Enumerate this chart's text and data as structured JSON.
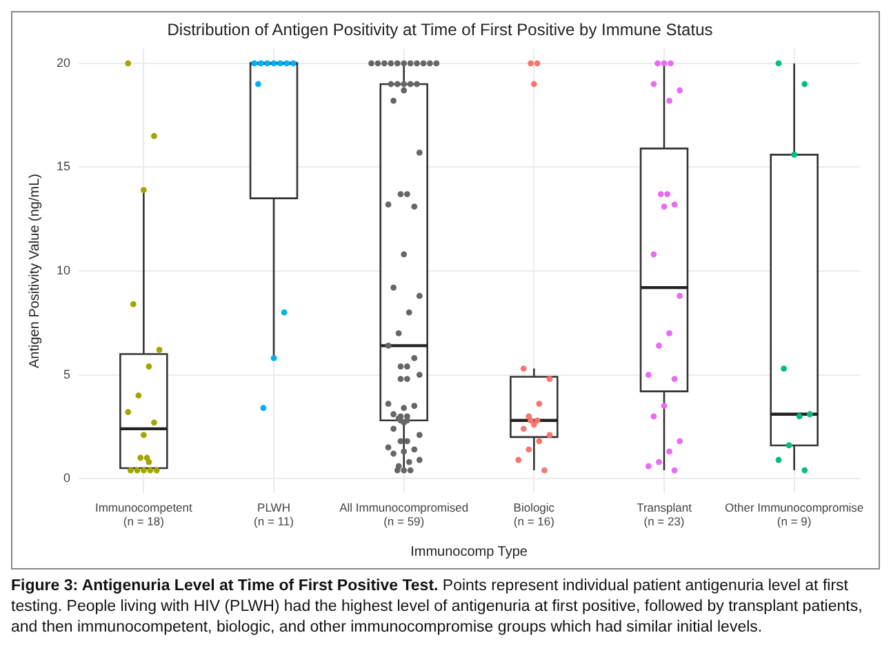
{
  "chart_data": {
    "type": "box",
    "title": "Distribution of Antigen Positivity at Time of First Positive by Immune Status",
    "xlabel": "Immunocomp Type",
    "ylabel": "Antigen Positivity Value (ng/mL)",
    "categories": [
      "Immunocompetent\n(n = 18)",
      "PLWH\n(n = 11)",
      "All Immunocompromised\n(n = 59)",
      "Biologic\n(n = 16)",
      "Transplant\n(n = 23)",
      "Other Immunocompromise\n(n = 9)"
    ],
    "boxes": [
      {
        "low": 0.4,
        "q1": 0.5,
        "median": 2.4,
        "q3": 6.0,
        "high": 13.9
      },
      {
        "low": 5.8,
        "q1": 13.5,
        "median": 20,
        "q3": 20,
        "high": 20
      },
      {
        "low": 0.4,
        "q1": 2.8,
        "median": 6.4,
        "q3": 19,
        "high": 20
      },
      {
        "low": 0.4,
        "q1": 2.0,
        "median": 2.8,
        "q3": 4.9,
        "high": 5.3
      },
      {
        "low": 0.4,
        "q1": 4.2,
        "median": 9.2,
        "q3": 15.9,
        "high": 20
      },
      {
        "low": 0.4,
        "q1": 1.6,
        "median": 3.1,
        "q3": 15.6,
        "high": 20
      }
    ],
    "series": [
      {
        "type": "scatter",
        "color": "#a3a500",
        "x": [
          "Immunocompetent\n(n = 18)",
          "Immunocompetent\n(n = 18)",
          "Immunocompetent\n(n = 18)",
          "Immunocompetent\n(n = 18)",
          "Immunocompetent\n(n = 18)",
          "Immunocompetent\n(n = 18)",
          "Immunocompetent\n(n = 18)",
          "Immunocompetent\n(n = 18)",
          "Immunocompetent\n(n = 18)",
          "Immunocompetent\n(n = 18)",
          "Immunocompetent\n(n = 18)",
          "Immunocompetent\n(n = 18)",
          "Immunocompetent\n(n = 18)",
          "Immunocompetent\n(n = 18)",
          "Immunocompetent\n(n = 18)",
          "Immunocompetent\n(n = 18)",
          "Immunocompetent\n(n = 18)",
          "Immunocompetent\n(n = 18)"
        ],
        "values": [
          20,
          16.5,
          13.9,
          8.4,
          6.2,
          5.4,
          4.0,
          3.2,
          2.7,
          2.1,
          1.0,
          1.0,
          0.8,
          0.4,
          0.4,
          0.4,
          0.4,
          0.4
        ]
      },
      {
        "type": "scatter",
        "color": "#00b0f6",
        "x": [
          "PLWH\n(n = 11)",
          "PLWH\n(n = 11)",
          "PLWH\n(n = 11)",
          "PLWH\n(n = 11)",
          "PLWH\n(n = 11)",
          "PLWH\n(n = 11)",
          "PLWH\n(n = 11)",
          "PLWH\n(n = 11)",
          "PLWH\n(n = 11)",
          "PLWH\n(n = 11)",
          "PLWH\n(n = 11)"
        ],
        "values": [
          20,
          20,
          20,
          20,
          20,
          20,
          20,
          19,
          8.0,
          5.8,
          3.4
        ]
      },
      {
        "type": "scatter",
        "color": "#666666",
        "x": [
          "All Immunocompromised\n(n = 59)",
          "All Immunocompromised\n(n = 59)",
          "All Immunocompromised\n(n = 59)",
          "All Immunocompromised\n(n = 59)",
          "All Immunocompromised\n(n = 59)",
          "All Immunocompromised\n(n = 59)",
          "All Immunocompromised\n(n = 59)",
          "All Immunocompromised\n(n = 59)",
          "All Immunocompromised\n(n = 59)",
          "All Immunocompromised\n(n = 59)",
          "All Immunocompromised\n(n = 59)",
          "All Immunocompromised\n(n = 59)",
          "All Immunocompromised\n(n = 59)",
          "All Immunocompromised\n(n = 59)",
          "All Immunocompromised\n(n = 59)",
          "All Immunocompromised\n(n = 59)",
          "All Immunocompromised\n(n = 59)",
          "All Immunocompromised\n(n = 59)",
          "All Immunocompromised\n(n = 59)",
          "All Immunocompromised\n(n = 59)",
          "All Immunocompromised\n(n = 59)",
          "All Immunocompromised\n(n = 59)",
          "All Immunocompromised\n(n = 59)",
          "All Immunocompromised\n(n = 59)",
          "All Immunocompromised\n(n = 59)",
          "All Immunocompromised\n(n = 59)",
          "All Immunocompromised\n(n = 59)",
          "All Immunocompromised\n(n = 59)",
          "All Immunocompromised\n(n = 59)",
          "All Immunocompromised\n(n = 59)",
          "All Immunocompromised\n(n = 59)",
          "All Immunocompromised\n(n = 59)",
          "All Immunocompromised\n(n = 59)",
          "All Immunocompromised\n(n = 59)",
          "All Immunocompromised\n(n = 59)",
          "All Immunocompromised\n(n = 59)",
          "All Immunocompromised\n(n = 59)",
          "All Immunocompromised\n(n = 59)",
          "All Immunocompromised\n(n = 59)",
          "All Immunocompromised\n(n = 59)",
          "All Immunocompromised\n(n = 59)",
          "All Immunocompromised\n(n = 59)",
          "All Immunocompromised\n(n = 59)",
          "All Immunocompromised\n(n = 59)",
          "All Immunocompromised\n(n = 59)",
          "All Immunocompromised\n(n = 59)",
          "All Immunocompromised\n(n = 59)",
          "All Immunocompromised\n(n = 59)",
          "All Immunocompromised\n(n = 59)",
          "All Immunocompromised\n(n = 59)",
          "All Immunocompromised\n(n = 59)",
          "All Immunocompromised\n(n = 59)",
          "All Immunocompromised\n(n = 59)",
          "All Immunocompromised\n(n = 59)",
          "All Immunocompromised\n(n = 59)",
          "All Immunocompromised\n(n = 59)",
          "All Immunocompromised\n(n = 59)",
          "All Immunocompromised\n(n = 59)",
          "All Immunocompromised\n(n = 59)"
        ],
        "values": [
          20,
          20,
          20,
          20,
          20,
          20,
          20,
          20,
          20,
          20,
          20,
          19,
          19,
          19,
          19,
          19,
          18.7,
          18.2,
          15.7,
          13.7,
          13.7,
          13.2,
          13.1,
          10.8,
          9.2,
          8.8,
          8.0,
          7.0,
          6.4,
          5.8,
          5.4,
          5.4,
          5.0,
          4.8,
          4.8,
          3.6,
          3.5,
          3.4,
          3.1,
          3.0,
          3.0,
          2.9,
          2.8,
          2.8,
          2.7,
          2.4,
          2.1,
          1.8,
          1.8,
          1.5,
          1.4,
          1.3,
          1.2,
          0.9,
          0.8,
          0.6,
          0.4,
          0.4,
          0.4
        ]
      },
      {
        "type": "scatter",
        "color": "#f8766d",
        "x": [
          "Biologic\n(n = 16)",
          "Biologic\n(n = 16)",
          "Biologic\n(n = 16)",
          "Biologic\n(n = 16)",
          "Biologic\n(n = 16)",
          "Biologic\n(n = 16)",
          "Biologic\n(n = 16)",
          "Biologic\n(n = 16)",
          "Biologic\n(n = 16)",
          "Biologic\n(n = 16)",
          "Biologic\n(n = 16)",
          "Biologic\n(n = 16)",
          "Biologic\n(n = 16)",
          "Biologic\n(n = 16)",
          "Biologic\n(n = 16)",
          "Biologic\n(n = 16)"
        ],
        "values": [
          20,
          20,
          19,
          5.3,
          4.8,
          3.6,
          3.0,
          2.8,
          2.8,
          2.6,
          2.4,
          2.1,
          1.8,
          1.4,
          0.9,
          0.4
        ]
      },
      {
        "type": "scatter",
        "color": "#e76bf3",
        "x": [
          "Transplant\n(n = 23)",
          "Transplant\n(n = 23)",
          "Transplant\n(n = 23)",
          "Transplant\n(n = 23)",
          "Transplant\n(n = 23)",
          "Transplant\n(n = 23)",
          "Transplant\n(n = 23)",
          "Transplant\n(n = 23)",
          "Transplant\n(n = 23)",
          "Transplant\n(n = 23)",
          "Transplant\n(n = 23)",
          "Transplant\n(n = 23)",
          "Transplant\n(n = 23)",
          "Transplant\n(n = 23)",
          "Transplant\n(n = 23)",
          "Transplant\n(n = 23)",
          "Transplant\n(n = 23)",
          "Transplant\n(n = 23)",
          "Transplant\n(n = 23)",
          "Transplant\n(n = 23)",
          "Transplant\n(n = 23)",
          "Transplant\n(n = 23)",
          "Transplant\n(n = 23)"
        ],
        "values": [
          20,
          20,
          20,
          19,
          18.7,
          18.2,
          13.7,
          13.7,
          13.2,
          13.1,
          10.8,
          8.8,
          7.0,
          6.4,
          5.0,
          4.8,
          3.5,
          3.0,
          1.8,
          1.3,
          0.8,
          0.6,
          0.4
        ]
      },
      {
        "type": "scatter",
        "color": "#00bf7d",
        "x": [
          "Other Immunocompromise\n(n = 9)",
          "Other Immunocompromise\n(n = 9)",
          "Other Immunocompromise\n(n = 9)",
          "Other Immunocompromise\n(n = 9)",
          "Other Immunocompromise\n(n = 9)",
          "Other Immunocompromise\n(n = 9)",
          "Other Immunocompromise\n(n = 9)",
          "Other Immunocompromise\n(n = 9)",
          "Other Immunocompromise\n(n = 9)"
        ],
        "values": [
          20,
          19,
          15.6,
          5.3,
          3.1,
          3.0,
          1.6,
          0.9,
          0.4
        ]
      }
    ],
    "ylim": [
      -0.7,
      20.7
    ],
    "yticks": [
      0,
      5,
      10,
      15,
      20
    ],
    "grid": true,
    "marker": "circle",
    "annotations": [
      "Figure 3: Antigenuria Level at Time of First Positive Test. Points represent individual patient antigenuria level at first testing. People living with HIV (PLWH) had the highest level of antigenuria at first positive, followed by transplant patients, and then immunocompetent, biologic, and other immunocompromise groups which had similar initial levels."
    ]
  }
}
